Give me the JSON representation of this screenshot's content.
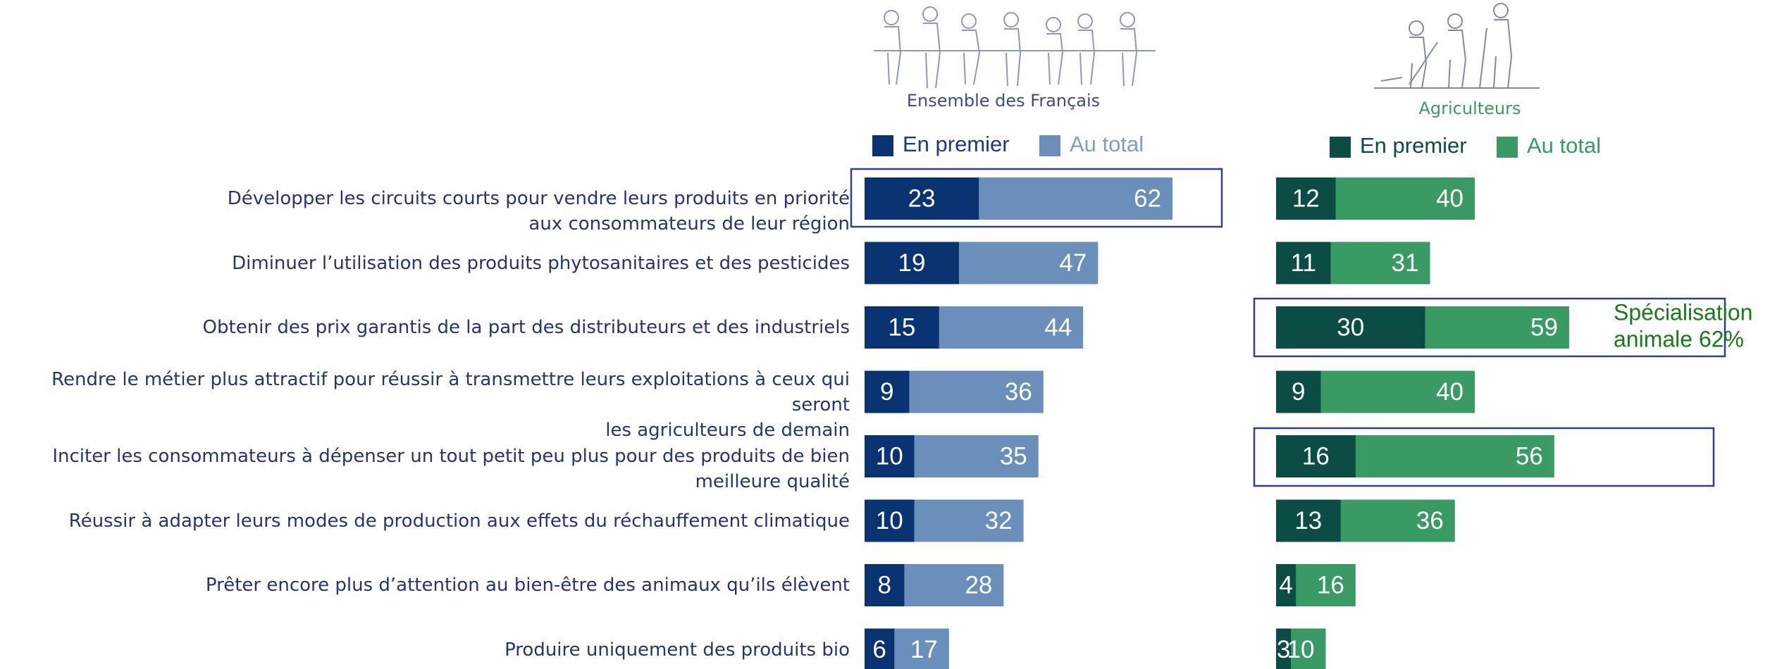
{
  "chart_data": {
    "type": "bar",
    "categories": [
      "Développer les circuits courts pour vendre leurs produits en priorité\naux consommateurs de leur région",
      "Diminuer l’utilisation des produits phytosanitaires et des pesticides",
      "Obtenir des prix garantis de la part des distributeurs et des industriels",
      "Rendre le métier plus attractif pour réussir à transmettre leurs exploitations à ceux qui seront\nles agriculteurs de demain",
      "Inciter les consommateurs à dépenser un tout petit peu plus pour des produits de bien\nmeilleure qualité",
      "Réussir à adapter leurs modes de production aux effets du réchauffement climatique",
      "Prêter encore plus d’attention au bien-être des animaux qu’ils élèvent",
      "Produire uniquement des produits bio"
    ],
    "panels": [
      {
        "title": "Ensemble des Français",
        "series": [
          {
            "name": "En premier",
            "color": "#0a3371",
            "values": [
              23,
              19,
              15,
              9,
              10,
              10,
              8,
              6
            ]
          },
          {
            "name": "Au total",
            "color": "#6a8fba",
            "values": [
              62,
              47,
              44,
              36,
              35,
              32,
              28,
              17
            ]
          }
        ]
      },
      {
        "title": "Agriculteurs",
        "series": [
          {
            "name": "En premier",
            "color": "#0b4d45",
            "values": [
              12,
              11,
              30,
              9,
              16,
              13,
              4,
              3
            ]
          },
          {
            "name": "Au total",
            "color": "#3a9a64",
            "values": [
              40,
              31,
              59,
              40,
              56,
              36,
              16,
              10
            ]
          }
        ],
        "annotation": [
          "Spécialisation",
          "animale 62%"
        ]
      }
    ]
  }
}
